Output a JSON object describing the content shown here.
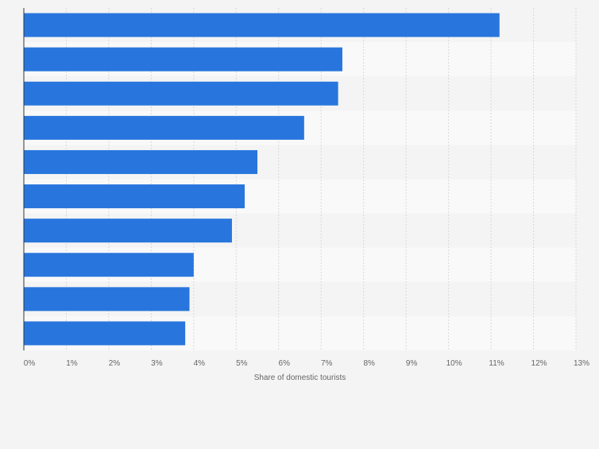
{
  "chart_data": {
    "type": "bar",
    "orientation": "horizontal",
    "categories": [
      "",
      "",
      "",
      "",
      "",
      "",
      "",
      "",
      "",
      ""
    ],
    "values": [
      11.2,
      7.5,
      7.4,
      6.6,
      5.5,
      5.2,
      4.9,
      4.0,
      3.9,
      3.8
    ],
    "xlabel": "Share of domestic tourists",
    "ylabel": "",
    "xlim": [
      0,
      13
    ],
    "x_ticks": [
      "0%",
      "1%",
      "2%",
      "3%",
      "4%",
      "5%",
      "6%",
      "7%",
      "8%",
      "9%",
      "10%",
      "11%",
      "12%",
      "13%"
    ],
    "grid": true,
    "legend": "none",
    "colors": {
      "bar": "#2876dd",
      "grid": "#d9d9d9",
      "band_light": "#f9f9f9",
      "band_dark": "#f4f4f4",
      "axis": "#333333",
      "tick_text": "#666666"
    }
  }
}
